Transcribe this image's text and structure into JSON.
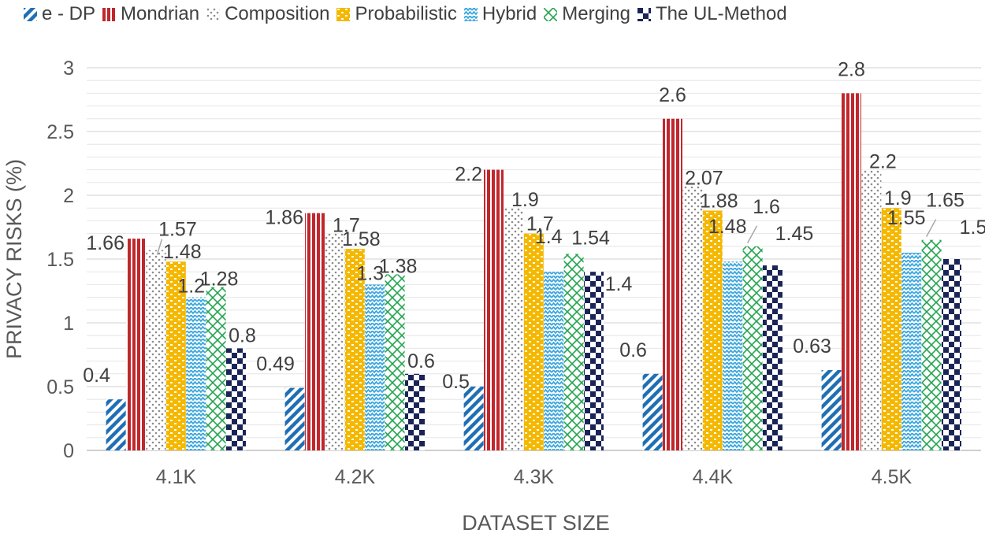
{
  "chart_data": {
    "type": "bar",
    "title": "",
    "xlabel": "DATASET SIZE",
    "ylabel": "PRIVACY RISKS (%)",
    "ylim": [
      0,
      3
    ],
    "yticks": [
      "0",
      "0.5",
      "1",
      "1.5",
      "2",
      "2.5",
      "3"
    ],
    "grid": true,
    "legend_position": "top",
    "categories": [
      "4.1K",
      "4.2K",
      "4.3K",
      "4.4K",
      "4.5K"
    ],
    "series": [
      {
        "name": "e - DP",
        "values": [
          0.4,
          0.49,
          0.5,
          0.6,
          0.63
        ],
        "labels": [
          "0.4",
          "0.49",
          "0.5",
          "0.6",
          "0.63"
        ],
        "color": "#1f6fb5",
        "pattern": "diagonal-stripes"
      },
      {
        "name": "Mondrian",
        "values": [
          1.66,
          1.86,
          2.2,
          2.6,
          2.8
        ],
        "labels": [
          "1.66",
          "1.86",
          "2.2",
          "2.6",
          "2.8"
        ],
        "color": "#c0272d",
        "pattern": "vertical-stripes"
      },
      {
        "name": "Composition",
        "values": [
          1.57,
          1.7,
          1.9,
          2.07,
          2.2
        ],
        "labels": [
          "1.57",
          "1.7",
          "1.9",
          "2.07",
          "2.2"
        ],
        "color": "#8c8c8c",
        "pattern": "dots"
      },
      {
        "name": "Probabilistic",
        "values": [
          1.48,
          1.58,
          1.7,
          1.88,
          1.9
        ],
        "labels": [
          "1.48",
          "1.58",
          "1.7",
          "1.88",
          "1.9"
        ],
        "color": "#f5b800",
        "pattern": "bricks"
      },
      {
        "name": "Hybrid",
        "values": [
          1.2,
          1.3,
          1.4,
          1.48,
          1.55
        ],
        "labels": [
          "1.2",
          "1.3",
          "1.4",
          "1.48",
          "1.55"
        ],
        "color": "#3aa6de",
        "pattern": "zigzag"
      },
      {
        "name": "Merging",
        "values": [
          1.28,
          1.38,
          1.54,
          1.6,
          1.65
        ],
        "labels": [
          "1.28",
          "1.38",
          "1.54",
          "1.6",
          "1.65"
        ],
        "color": "#23a44f",
        "pattern": "lattice"
      },
      {
        "name": "The UL-Method",
        "values": [
          0.8,
          0.6,
          1.4,
          1.45,
          1.5
        ],
        "labels": [
          "0.8",
          "0.6",
          "1.4",
          "1.45",
          "1.5"
        ],
        "color": "#1a2456",
        "pattern": "checker"
      }
    ]
  }
}
